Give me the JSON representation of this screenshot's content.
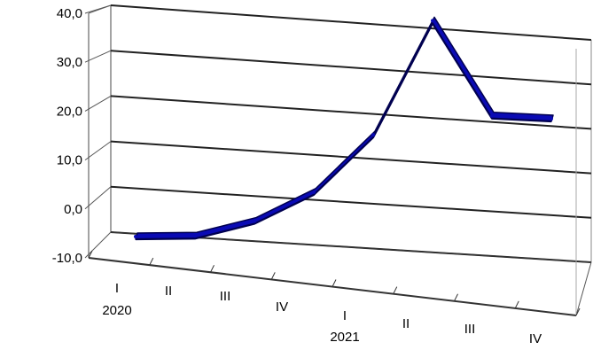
{
  "chart_data": {
    "type": "line",
    "x_quarters": [
      "I",
      "II",
      "III",
      "IV",
      "I",
      "II",
      "III",
      "IV"
    ],
    "x_years": [
      "2020",
      "",
      "",
      "",
      "2021",
      "",
      "",
      ""
    ],
    "series": [
      {
        "values": [
          -7.0,
          -8.0,
          -5.0,
          2.0,
          17.0,
          48.0,
          20.0,
          18.0
        ]
      }
    ],
    "y_ticks": [
      "-10,0",
      "0,0",
      "10,0",
      "20,0",
      "30,0",
      "40,0"
    ],
    "ylim": [
      -10,
      40
    ],
    "grid": true,
    "legend": "none",
    "style": "3d-line",
    "colors": {
      "line": "#0a0ab4",
      "line_edge": "#000050",
      "grid": "#000000"
    }
  }
}
